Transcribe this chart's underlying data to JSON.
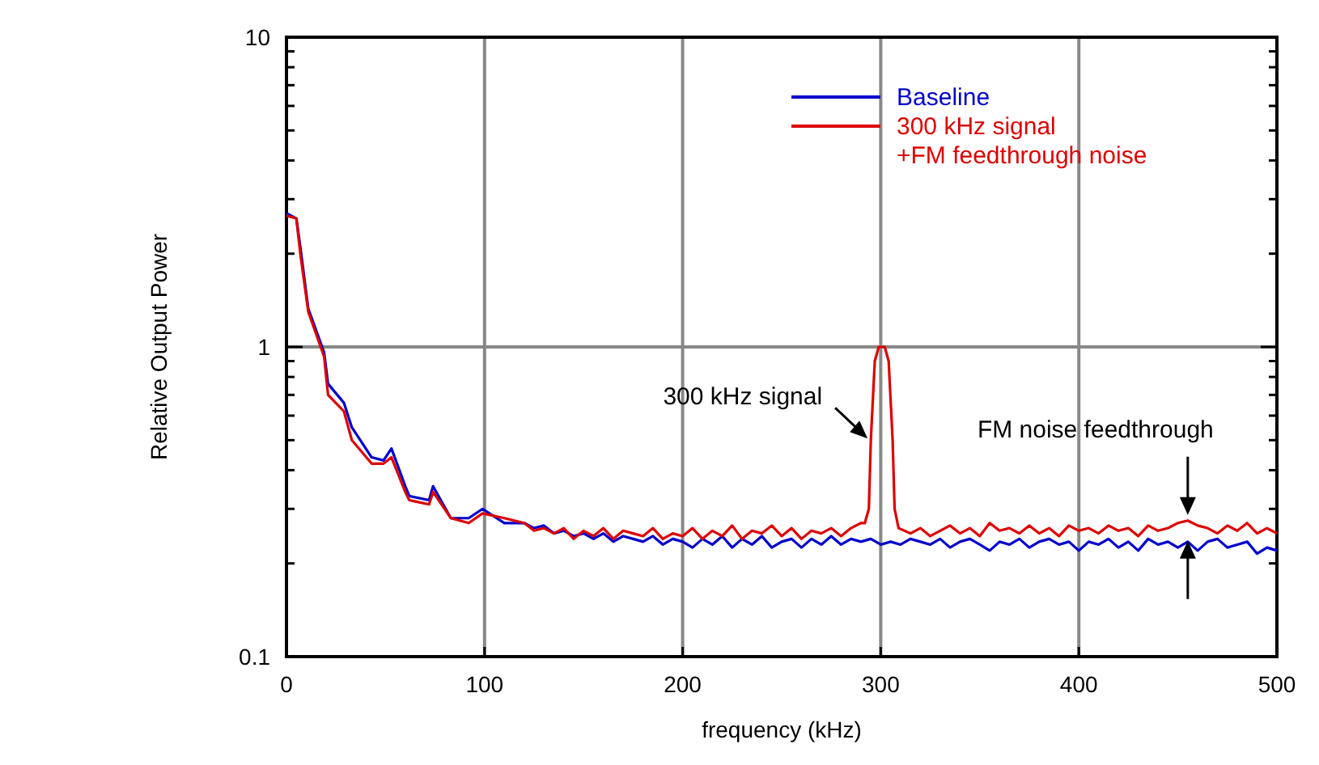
{
  "chart_data": {
    "type": "line",
    "xlabel": "frequency (kHz)",
    "ylabel": "Relative Output Power",
    "log": "y",
    "grid": true,
    "legend": "top right",
    "line_style": "solid",
    "xlim": [
      0,
      500
    ],
    "xticks": [
      0,
      100,
      200,
      300,
      400,
      500
    ],
    "ylim": [
      0.1,
      10
    ],
    "yticks": [
      {
        "value": 0.1,
        "label": "0.1"
      },
      {
        "value": 0.2,
        "label": null
      },
      {
        "value": 0.3,
        "label": null
      },
      {
        "value": 0.4,
        "label": null
      },
      {
        "value": 0.5,
        "label": null
      },
      {
        "value": 0.6,
        "label": null
      },
      {
        "value": 0.7,
        "label": null
      },
      {
        "value": 0.8,
        "label": null
      },
      {
        "value": 0.9,
        "label": null
      },
      1,
      {
        "value": 2,
        "label": null
      },
      {
        "value": 3,
        "label": null
      },
      {
        "value": 4,
        "label": null
      },
      {
        "value": 5,
        "label": null
      },
      {
        "value": 6,
        "label": null
      },
      {
        "value": 7,
        "label": null
      },
      {
        "value": 8,
        "label": null
      },
      {
        "value": 9,
        "label": null
      },
      10
    ],
    "series": [
      {
        "name": "Baseline",
        "color": "#0000cc",
        "x": [
          0,
          5,
          7,
          11,
          19,
          21,
          29,
          33,
          43,
          49,
          53,
          60,
          62,
          72,
          74,
          83,
          92,
          99,
          110,
          120,
          125,
          130,
          135,
          140,
          145,
          150,
          155,
          160,
          165,
          170,
          175,
          180,
          185,
          190,
          195,
          200,
          205,
          210,
          215,
          220,
          225,
          230,
          235,
          240,
          245,
          250,
          255,
          260,
          265,
          270,
          275,
          280,
          285,
          290,
          295,
          300,
          305,
          310,
          315,
          320,
          325,
          330,
          335,
          340,
          345,
          350,
          355,
          360,
          365,
          370,
          375,
          380,
          385,
          390,
          395,
          400,
          405,
          410,
          415,
          420,
          425,
          430,
          435,
          440,
          445,
          450,
          455,
          460,
          465,
          470,
          475,
          480,
          485,
          490,
          495,
          500
        ],
        "values": [
          2.7,
          2.6,
          2.1,
          1.33,
          0.96,
          0.76,
          0.66,
          0.55,
          0.44,
          0.43,
          0.47,
          0.355,
          0.33,
          0.32,
          0.355,
          0.28,
          0.28,
          0.3,
          0.27,
          0.27,
          0.26,
          0.265,
          0.25,
          0.255,
          0.245,
          0.25,
          0.24,
          0.25,
          0.235,
          0.245,
          0.24,
          0.235,
          0.245,
          0.23,
          0.24,
          0.235,
          0.225,
          0.24,
          0.23,
          0.245,
          0.225,
          0.24,
          0.23,
          0.245,
          0.225,
          0.235,
          0.24,
          0.225,
          0.24,
          0.23,
          0.245,
          0.23,
          0.24,
          0.235,
          0.24,
          0.23,
          0.235,
          0.23,
          0.24,
          0.235,
          0.23,
          0.24,
          0.225,
          0.235,
          0.24,
          0.23,
          0.22,
          0.235,
          0.23,
          0.24,
          0.225,
          0.235,
          0.24,
          0.23,
          0.235,
          0.22,
          0.235,
          0.23,
          0.24,
          0.225,
          0.235,
          0.22,
          0.24,
          0.23,
          0.235,
          0.225,
          0.235,
          0.22,
          0.235,
          0.24,
          0.225,
          0.23,
          0.235,
          0.215,
          0.225,
          0.22
        ]
      },
      {
        "name": "300 kHz signal\n+FM feedthrough noise",
        "color": "#dd0000",
        "x": [
          0,
          5,
          7,
          11,
          19,
          21,
          29,
          33,
          43,
          49,
          53,
          60,
          62,
          72,
          74,
          83,
          92,
          99,
          110,
          120,
          125,
          130,
          135,
          140,
          145,
          150,
          155,
          160,
          165,
          170,
          175,
          180,
          185,
          190,
          195,
          200,
          205,
          210,
          215,
          220,
          225,
          230,
          235,
          240,
          245,
          250,
          255,
          260,
          265,
          270,
          275,
          280,
          285,
          290,
          292,
          294,
          295,
          297,
          299,
          302,
          304,
          306,
          307,
          309,
          315,
          320,
          325,
          330,
          335,
          340,
          345,
          350,
          355,
          360,
          365,
          370,
          375,
          380,
          385,
          390,
          395,
          400,
          405,
          410,
          415,
          420,
          425,
          430,
          435,
          440,
          445,
          450,
          455,
          460,
          465,
          470,
          475,
          480,
          485,
          490,
          495,
          500
        ],
        "values": [
          2.65,
          2.6,
          2.0,
          1.3,
          0.93,
          0.7,
          0.62,
          0.5,
          0.42,
          0.42,
          0.44,
          0.34,
          0.32,
          0.31,
          0.34,
          0.28,
          0.27,
          0.29,
          0.28,
          0.27,
          0.255,
          0.26,
          0.25,
          0.26,
          0.24,
          0.255,
          0.245,
          0.26,
          0.24,
          0.255,
          0.25,
          0.245,
          0.26,
          0.24,
          0.25,
          0.245,
          0.26,
          0.24,
          0.255,
          0.245,
          0.265,
          0.24,
          0.255,
          0.25,
          0.265,
          0.245,
          0.26,
          0.24,
          0.255,
          0.25,
          0.26,
          0.245,
          0.26,
          0.27,
          0.27,
          0.3,
          0.5,
          0.9,
          1.0,
          1.0,
          0.9,
          0.5,
          0.3,
          0.26,
          0.25,
          0.26,
          0.245,
          0.255,
          0.265,
          0.25,
          0.26,
          0.245,
          0.27,
          0.255,
          0.26,
          0.25,
          0.265,
          0.25,
          0.26,
          0.245,
          0.265,
          0.255,
          0.26,
          0.25,
          0.265,
          0.255,
          0.26,
          0.245,
          0.265,
          0.255,
          0.26,
          0.27,
          0.275,
          0.265,
          0.26,
          0.25,
          0.265,
          0.255,
          0.27,
          0.25,
          0.26,
          0.25
        ]
      }
    ],
    "annotations": [
      {
        "text": "300 kHz signal",
        "x": 295,
        "y": 0.5
      },
      {
        "text": "FM noise feedthrough",
        "x": 455,
        "y": 0.28
      }
    ]
  }
}
